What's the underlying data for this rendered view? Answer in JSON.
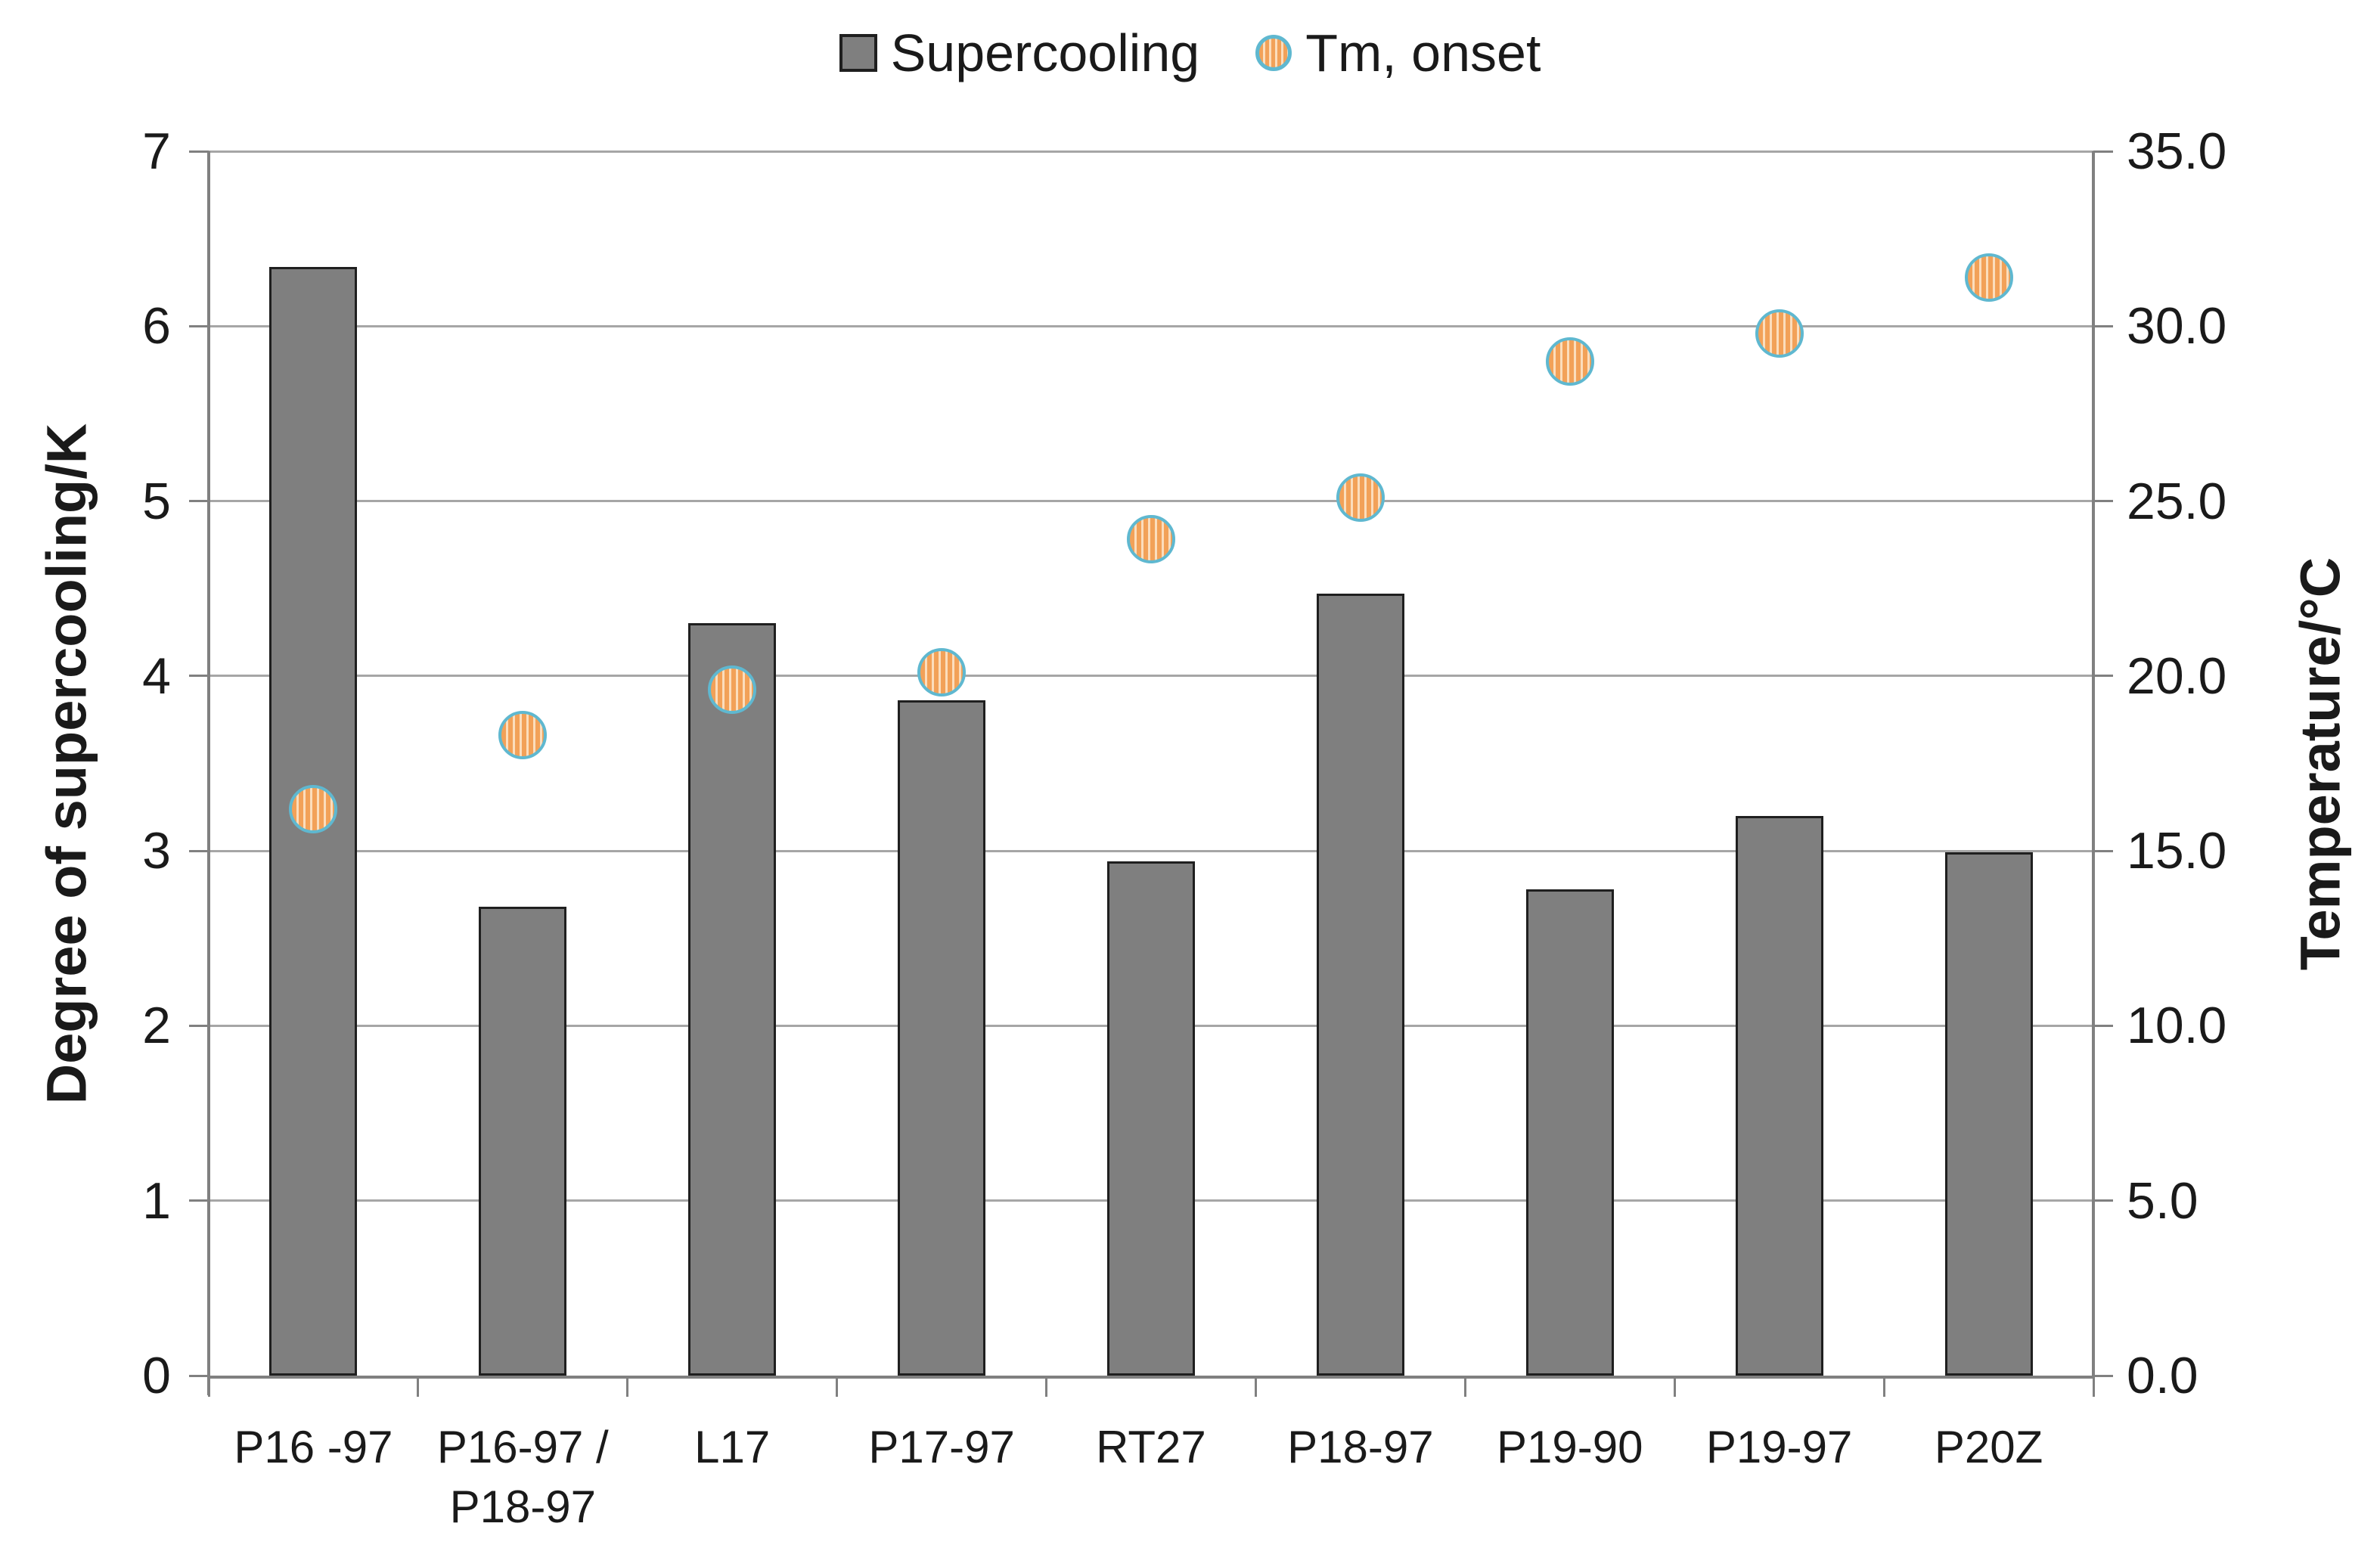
{
  "chart_data": {
    "type": "combo",
    "title": "",
    "categories": [
      {
        "lines": [
          "P16 -97"
        ]
      },
      {
        "lines": [
          "P16-97 /",
          "P18-97"
        ]
      },
      {
        "lines": [
          "L17"
        ]
      },
      {
        "lines": [
          "P17-97"
        ]
      },
      {
        "lines": [
          "RT27"
        ]
      },
      {
        "lines": [
          "P18-97"
        ]
      },
      {
        "lines": [
          "P19-90"
        ]
      },
      {
        "lines": [
          "P19-97"
        ]
      },
      {
        "lines": [
          "P20Z"
        ]
      }
    ],
    "series": [
      {
        "name": "Supercooling",
        "kind": "bar",
        "axis": "left",
        "values": [
          6.34,
          2.68,
          4.3,
          3.86,
          2.94,
          4.47,
          2.78,
          3.2,
          2.99
        ]
      },
      {
        "name": "Tm, onset",
        "kind": "scatter",
        "axis": "right",
        "values": [
          16.2,
          18.3,
          19.6,
          20.1,
          23.9,
          25.1,
          29.0,
          29.8,
          31.4
        ]
      }
    ],
    "left_axis": {
      "label": "Degree of supercooling/K",
      "min": 0,
      "max": 7,
      "step": 1,
      "tick_labels": [
        "0",
        "1",
        "2",
        "3",
        "4",
        "5",
        "6",
        "7"
      ]
    },
    "right_axis": {
      "label": "Temperature/°C",
      "min": 0,
      "max": 35,
      "step": 5,
      "tick_labels": [
        "0.0",
        "5.0",
        "10.0",
        "15.0",
        "20.0",
        "25.0",
        "30.0",
        "35.0"
      ]
    },
    "legend": [
      {
        "label": "Supercooling",
        "swatch": "square"
      },
      {
        "label": "Tm, onset",
        "swatch": "circle"
      }
    ],
    "legend_position": "top-center",
    "grid": true,
    "colors": {
      "bar_fill": "#7F7F7F",
      "bar_border": "#1f1f1f",
      "marker_stripe": "#F2A158",
      "marker_stripe_light": "#FBDDBC",
      "marker_ring": "#5FB8D0",
      "gridline": "#A6A6A6",
      "axis_line": "#808080",
      "text": "#1a1a1a"
    }
  }
}
